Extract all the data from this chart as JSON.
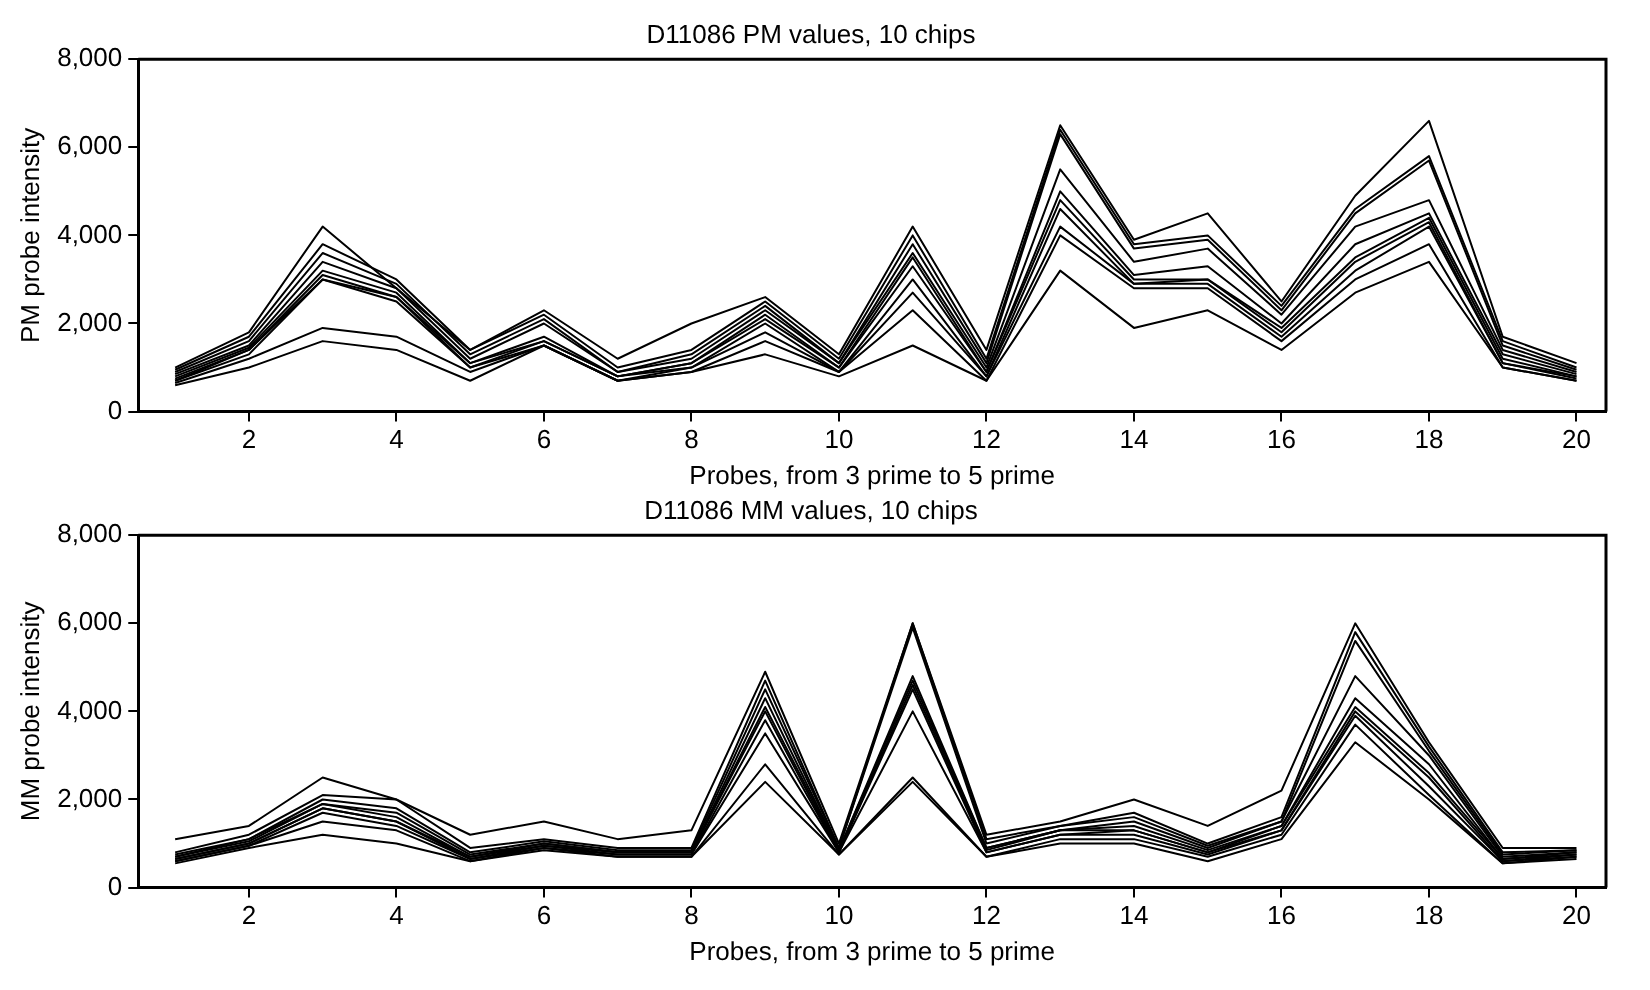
{
  "chart_data": [
    {
      "type": "line",
      "title": "D11086 PM values, 10 chips",
      "xlabel": "Probes, from 3 prime to 5 prime",
      "ylabel": "PM probe intensity",
      "x": [
        1,
        2,
        3,
        4,
        5,
        6,
        7,
        8,
        9,
        10,
        11,
        12,
        13,
        14,
        15,
        16,
        17,
        18,
        19,
        20
      ],
      "xlim": [
        0.5,
        20.4
      ],
      "xticks": [
        2,
        4,
        6,
        8,
        10,
        12,
        14,
        16,
        18,
        20
      ],
      "ylim": [
        0,
        8000
      ],
      "yticks": [
        0,
        {
          "value": 2000,
          "label": "2,000"
        },
        {
          "value": 4000,
          "label": "4,000"
        },
        {
          "value": 6000,
          "label": "6,000"
        },
        {
          "value": 8000,
          "label": "8,000"
        }
      ],
      "grid": false,
      "legend": false,
      "marker": "none",
      "line_style": "solid",
      "series": [
        {
          "color": "#000000",
          "values": [
            1000,
            1800,
            4200,
            2800,
            1400,
            2300,
            1200,
            2000,
            2600,
            1300,
            4200,
            1400,
            6500,
            3900,
            4500,
            2500,
            4900,
            6600,
            1700,
            1100
          ]
        },
        {
          "color": "#000000",
          "values": [
            950,
            1700,
            3800,
            3000,
            1400,
            2200,
            1000,
            1400,
            2500,
            1200,
            4000,
            1200,
            6400,
            3800,
            4000,
            2400,
            4600,
            5800,
            1600,
            1000
          ]
        },
        {
          "color": "#000000",
          "values": [
            900,
            1600,
            3600,
            2900,
            1300,
            2100,
            900,
            1300,
            2400,
            1100,
            3800,
            1100,
            6300,
            3700,
            3900,
            2300,
            4500,
            5700,
            1500,
            950
          ]
        },
        {
          "color": "#000000",
          "values": [
            850,
            1500,
            3400,
            2800,
            1200,
            2000,
            900,
            1200,
            2300,
            1100,
            3600,
            1000,
            5500,
            3400,
            3700,
            2200,
            4200,
            4800,
            1400,
            900
          ]
        },
        {
          "color": "#000000",
          "values": [
            800,
            1450,
            3200,
            2700,
            1100,
            1700,
            800,
            1100,
            2200,
            1000,
            3500,
            900,
            5000,
            3100,
            3300,
            2000,
            3800,
            4500,
            1300,
            850
          ]
        },
        {
          "color": "#000000",
          "values": [
            750,
            1400,
            3100,
            2600,
            1100,
            1600,
            800,
            1100,
            2100,
            1000,
            3300,
            900,
            4800,
            3000,
            3000,
            1900,
            3500,
            4400,
            1200,
            800
          ]
        },
        {
          "color": "#000000",
          "values": [
            700,
            1400,
            3000,
            2600,
            1000,
            1600,
            800,
            1000,
            2000,
            900,
            3000,
            800,
            4600,
            2900,
            3000,
            1800,
            3400,
            4300,
            1100,
            800
          ]
        },
        {
          "color": "#000000",
          "values": [
            700,
            1300,
            3000,
            2500,
            1000,
            1500,
            700,
            1000,
            1800,
            900,
            2700,
            800,
            4200,
            2900,
            2900,
            1700,
            3200,
            4200,
            1100,
            750
          ]
        },
        {
          "color": "#000000",
          "values": [
            650,
            1200,
            1900,
            1700,
            900,
            1500,
            700,
            900,
            1600,
            900,
            2300,
            700,
            4000,
            2800,
            2800,
            1600,
            3000,
            3800,
            1000,
            700
          ]
        },
        {
          "color": "#000000",
          "values": [
            600,
            1000,
            1600,
            1400,
            700,
            1500,
            700,
            900,
            1300,
            800,
            1500,
            700,
            3200,
            1900,
            2300,
            1400,
            2700,
            3400,
            1000,
            700
          ]
        }
      ]
    },
    {
      "type": "line",
      "title": "D11086 MM values, 10 chips",
      "xlabel": "Probes, from 3 prime to 5 prime",
      "ylabel": "MM probe intensity",
      "x": [
        1,
        2,
        3,
        4,
        5,
        6,
        7,
        8,
        9,
        10,
        11,
        12,
        13,
        14,
        15,
        16,
        17,
        18,
        19,
        20
      ],
      "xlim": [
        0.5,
        20.4
      ],
      "xticks": [
        2,
        4,
        6,
        8,
        10,
        12,
        14,
        16,
        18,
        20
      ],
      "ylim": [
        0,
        8000
      ],
      "yticks": [
        0,
        {
          "value": 2000,
          "label": "2,000"
        },
        {
          "value": 4000,
          "label": "4,000"
        },
        {
          "value": 6000,
          "label": "6,000"
        },
        {
          "value": 8000,
          "label": "8,000"
        }
      ],
      "grid": false,
      "legend": false,
      "marker": "none",
      "line_style": "solid",
      "series": [
        {
          "color": "#000000",
          "values": [
            1100,
            1400,
            2500,
            2000,
            1200,
            1500,
            1100,
            1300,
            4900,
            1000,
            6000,
            1200,
            1500,
            2000,
            1400,
            2200,
            6000,
            3300,
            900,
            900
          ]
        },
        {
          "color": "#000000",
          "values": [
            800,
            1200,
            2100,
            2000,
            900,
            1100,
            900,
            900,
            4700,
            900,
            6000,
            1100,
            1400,
            1700,
            1000,
            1600,
            5800,
            3200,
            800,
            850
          ]
        },
        {
          "color": "#000000",
          "values": [
            750,
            1100,
            2000,
            1800,
            800,
            1050,
            850,
            850,
            4500,
            900,
            5900,
            1000,
            1400,
            1600,
            950,
            1500,
            5600,
            3100,
            750,
            850
          ]
        },
        {
          "color": "#000000",
          "values": [
            700,
            1100,
            1900,
            1700,
            750,
            1000,
            800,
            800,
            4300,
            850,
            4800,
            900,
            1300,
            1500,
            900,
            1500,
            4800,
            3000,
            700,
            800
          ]
        },
        {
          "color": "#000000",
          "values": [
            700,
            1050,
            1900,
            1600,
            700,
            1000,
            800,
            800,
            4100,
            850,
            4700,
            900,
            1300,
            1400,
            850,
            1400,
            4300,
            2800,
            650,
            800
          ]
        },
        {
          "color": "#000000",
          "values": [
            650,
            1000,
            1800,
            1500,
            700,
            950,
            800,
            800,
            4000,
            800,
            4600,
            850,
            1300,
            1300,
            800,
            1400,
            4100,
            2600,
            650,
            750
          ]
        },
        {
          "color": "#000000",
          "values": [
            650,
            1000,
            1800,
            1500,
            650,
            950,
            750,
            750,
            3800,
            800,
            4500,
            800,
            1200,
            1300,
            800,
            1300,
            4000,
            2500,
            600,
            750
          ]
        },
        {
          "color": "#000000",
          "values": [
            600,
            950,
            1700,
            1400,
            650,
            900,
            750,
            750,
            3500,
            800,
            4000,
            800,
            1200,
            1200,
            750,
            1300,
            3900,
            2300,
            600,
            700
          ]
        },
        {
          "color": "#000000",
          "values": [
            600,
            950,
            1500,
            1300,
            600,
            900,
            700,
            700,
            2800,
            750,
            2500,
            700,
            1100,
            1100,
            700,
            1200,
            3700,
            2100,
            550,
            700
          ]
        },
        {
          "color": "#000000",
          "values": [
            550,
            900,
            1200,
            1000,
            600,
            850,
            700,
            700,
            2400,
            750,
            2400,
            700,
            1000,
            1000,
            600,
            1100,
            3300,
            2000,
            550,
            650
          ]
        }
      ]
    }
  ]
}
